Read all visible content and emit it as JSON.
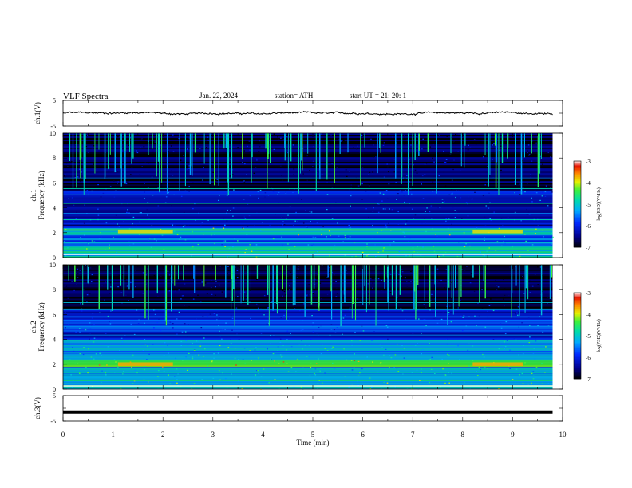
{
  "header": {
    "title": "VLF  Spectra",
    "date": "Jan. 22, 2024",
    "station": "station= ATH",
    "start": "start  UT  =   21: 20: 1"
  },
  "colorbar": {
    "label": "log(PSD)(V²/Hz)",
    "ticks": [
      "-3",
      "-4",
      "-5",
      "-6",
      "-7"
    ]
  },
  "chart_data": [
    {
      "type": "line",
      "panel": "ch1",
      "ylabel": "ch.1(V)",
      "ylim": [
        -5,
        5
      ],
      "ytick_labels": [
        "5",
        "-5"
      ],
      "xlim": [
        0,
        10
      ],
      "series": [
        {
          "baseline_value": 0.0,
          "amplitude": 0.8,
          "color": "#000000"
        }
      ]
    },
    {
      "type": "heatmap",
      "panel": "ch1-spectrogram",
      "ylabel": "ch.1\nFrequency (kHz)",
      "ylim": [
        0,
        10
      ],
      "ytick_labels": [
        "10",
        "8",
        "6",
        "4",
        "2",
        "0"
      ],
      "xlim": [
        0,
        10
      ],
      "color_range": [
        -7,
        -3
      ],
      "data_end_min": 9.8,
      "bands": [
        {
          "low": 0.0,
          "high": 1.0,
          "level": -5.0
        },
        {
          "low": 1.0,
          "high": 1.8,
          "level": -5.5
        },
        {
          "low": 1.8,
          "high": 2.4,
          "level": -4.8
        },
        {
          "low": 2.4,
          "high": 5.5,
          "level": -6.2
        },
        {
          "low": 5.5,
          "high": 10.0,
          "level": -6.8
        }
      ],
      "enhanced_regions": [
        {
          "t_start": 1.1,
          "t_end": 2.2,
          "freq": 2.1,
          "level": -3.9
        },
        {
          "t_start": 8.2,
          "t_end": 9.2,
          "freq": 2.1,
          "level": -3.9
        }
      ]
    },
    {
      "type": "heatmap",
      "panel": "ch2-spectrogram",
      "ylabel": "ch.2\nFrequency (kHz)",
      "ylim": [
        0,
        10
      ],
      "ytick_labels": [
        "10",
        "8",
        "6",
        "4",
        "2",
        "0"
      ],
      "xlim": [
        0,
        10
      ],
      "color_range": [
        -7,
        -3
      ],
      "data_end_min": 9.8,
      "bands": [
        {
          "low": 0.0,
          "high": 1.0,
          "level": -5.0
        },
        {
          "low": 1.0,
          "high": 1.8,
          "level": -5.3
        },
        {
          "low": 1.8,
          "high": 2.4,
          "level": -4.3
        },
        {
          "low": 2.4,
          "high": 4.0,
          "level": -5.3
        },
        {
          "low": 4.0,
          "high": 6.5,
          "level": -6.0
        },
        {
          "low": 6.5,
          "high": 10.0,
          "level": -6.8
        }
      ],
      "enhanced_regions": [
        {
          "t_start": 1.1,
          "t_end": 2.2,
          "freq": 2.0,
          "level": -3.7
        },
        {
          "t_start": 8.2,
          "t_end": 9.2,
          "freq": 2.0,
          "level": -3.7
        }
      ]
    },
    {
      "type": "line",
      "panel": "ch3",
      "ylabel": "ch.3(V)",
      "ylim": [
        -5,
        5
      ],
      "ytick_labels": [
        "5",
        "-5"
      ],
      "xlim": [
        0,
        10
      ],
      "series": [
        {
          "baseline_value": -1.5,
          "amplitude": 0.0,
          "color": "#000000"
        }
      ]
    }
  ],
  "xaxis": {
    "label": "Time  (min)",
    "ticks": [
      "0",
      "1",
      "2",
      "3",
      "4",
      "5",
      "6",
      "7",
      "8",
      "9",
      "10"
    ]
  }
}
